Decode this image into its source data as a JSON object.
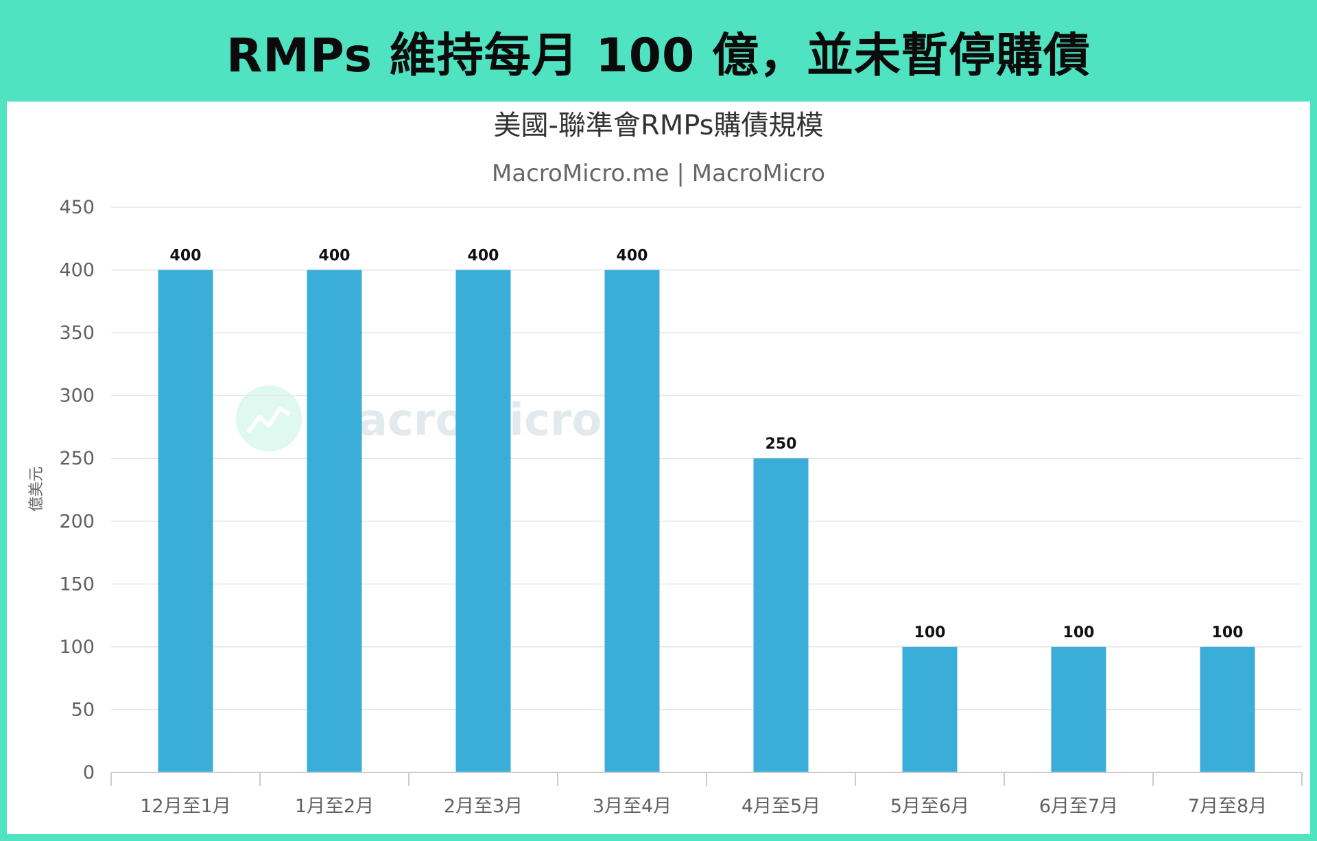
{
  "banner": {
    "title": "RMPs 維持每月 100 億，並未暫停購債"
  },
  "watermark": {
    "text": "MacroMicro",
    "icon": "macromicro-logo-icon"
  },
  "colors": {
    "frame": "#4fe3c1",
    "bar": "#3aaed8",
    "grid": "#e6e6e6"
  },
  "chart_data": {
    "type": "bar",
    "title": "美國-聯準會RMPs購債規模",
    "subtitle": "MacroMicro.me | MacroMicro",
    "xlabel": "",
    "ylabel": "億美元",
    "ylim": [
      0,
      450
    ],
    "yticks": [
      0,
      50,
      100,
      150,
      200,
      250,
      300,
      350,
      400,
      450
    ],
    "categories": [
      "12月至1月",
      "1月至2月",
      "2月至3月",
      "3月至4月",
      "4月至5月",
      "5月至6月",
      "6月至7月",
      "7月至8月"
    ],
    "values": [
      400,
      400,
      400,
      400,
      250,
      100,
      100,
      100
    ],
    "data_labels": true,
    "grid": true,
    "legend": "none"
  }
}
